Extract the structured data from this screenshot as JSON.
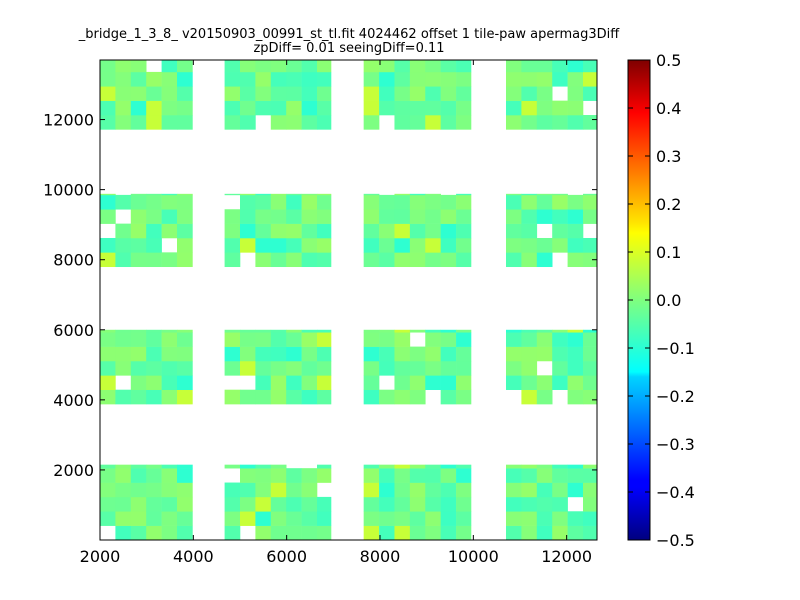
{
  "chart_data": {
    "type": "heatmap",
    "title": "_bridge_1_3_8_ v20150903_00991_st_tl.fit 4024462 offset 1 tile-paw apermag3Diff",
    "subtitle": "zpDiff= 0.01 seeingDiff=0.11",
    "xlim": [
      2000,
      12650
    ],
    "ylim": [
      0,
      13700
    ],
    "x_ticks": [
      2000,
      4000,
      6000,
      8000,
      10000,
      12000
    ],
    "x_tick_labels": [
      "2000",
      "4000",
      "6000",
      "8000",
      "10000",
      "12000"
    ],
    "y_ticks": [
      2000,
      4000,
      6000,
      8000,
      10000,
      12000
    ],
    "y_tick_labels": [
      "2000",
      "4000",
      "6000",
      "8000",
      "10000",
      "12000"
    ],
    "colorbar": {
      "min": -0.5,
      "max": 0.5,
      "colormap": "jet",
      "ticks": [
        0.5,
        0.4,
        0.3,
        0.2,
        0.1,
        0.0,
        -0.1,
        -0.2,
        -0.3,
        -0.4,
        -0.5
      ],
      "tick_labels": [
        "0.5",
        "0.4",
        "0.3",
        "0.2",
        "0.1",
        "0.0",
        "−0.1",
        "−0.2",
        "−0.3",
        "−0.4",
        "−0.5"
      ]
    },
    "cell_size": [
      330,
      410
    ],
    "chips": [
      {
        "x": [
          2000,
          3980
        ],
        "y": [
          0,
          2150
        ]
      },
      {
        "x": [
          4670,
          6950
        ],
        "y": [
          0,
          2150
        ]
      },
      {
        "x": [
          7650,
          9950
        ],
        "y": [
          0,
          2150
        ]
      },
      {
        "x": [
          10700,
          12650
        ],
        "y": [
          0,
          2150
        ]
      },
      {
        "x": [
          2000,
          3980
        ],
        "y": [
          3880,
          6000
        ]
      },
      {
        "x": [
          4670,
          6950
        ],
        "y": [
          3880,
          6000
        ]
      },
      {
        "x": [
          7650,
          9950
        ],
        "y": [
          3880,
          6000
        ]
      },
      {
        "x": [
          10700,
          12650
        ],
        "y": [
          3880,
          6000
        ]
      },
      {
        "x": [
          2000,
          3980
        ],
        "y": [
          7800,
          9880
        ]
      },
      {
        "x": [
          4670,
          6950
        ],
        "y": [
          7800,
          9880
        ]
      },
      {
        "x": [
          7650,
          9950
        ],
        "y": [
          7800,
          9880
        ]
      },
      {
        "x": [
          10700,
          12650
        ],
        "y": [
          7800,
          9880
        ]
      },
      {
        "x": [
          2000,
          3980
        ],
        "y": [
          11720,
          13700
        ]
      },
      {
        "x": [
          4670,
          6950
        ],
        "y": [
          11720,
          13700
        ]
      },
      {
        "x": [
          7650,
          9950
        ],
        "y": [
          11720,
          13700
        ]
      },
      {
        "x": [
          10700,
          12650
        ],
        "y": [
          11720,
          13700
        ]
      }
    ],
    "values_range": [
      -0.1,
      0.1
    ],
    "colors": {
      "axes": "#000000",
      "background": "#ffffff"
    }
  }
}
